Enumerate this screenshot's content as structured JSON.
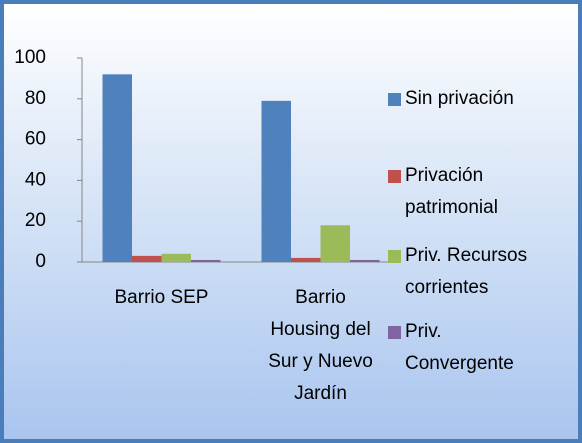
{
  "chart_data": {
    "type": "bar",
    "categories": [
      "Barrio SEP",
      "Barrio Housing del Sur y Nuevo Jardín"
    ],
    "series": [
      {
        "name": "Sin privación",
        "color": "#4f81bd",
        "values": [
          92,
          79
        ]
      },
      {
        "name": "Privación patrimonial",
        "color": "#c0504d",
        "values": [
          3,
          2
        ]
      },
      {
        "name": "Priv. Recursos corrientes",
        "color": "#9bbb59",
        "values": [
          4,
          18
        ]
      },
      {
        "name": "Priv. Convergente",
        "color": "#8064a2",
        "values": [
          1,
          1
        ]
      }
    ],
    "ylim": [
      0,
      100
    ],
    "yticks": [
      0,
      20,
      40,
      60,
      80,
      100
    ],
    "grid": false,
    "legend": "right"
  }
}
